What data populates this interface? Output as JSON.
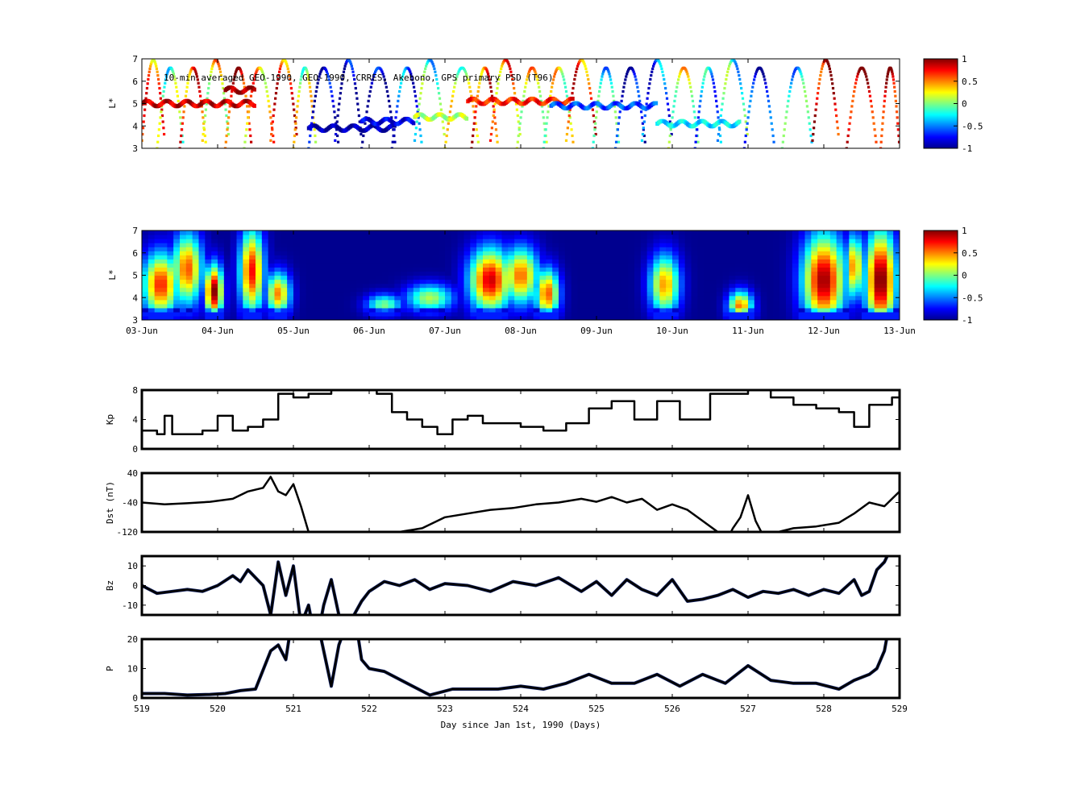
{
  "colors": {
    "jet": [
      "#00008f",
      "#0000ff",
      "#0080ff",
      "#00ffff",
      "#80ff80",
      "#ffff00",
      "#ff8000",
      "#ff0000",
      "#800000"
    ],
    "line": "#000000",
    "highlight": "#102060",
    "missing": "#00008f"
  },
  "chart_data": [
    {
      "id": "psd-obs",
      "type": "scatter",
      "title": "10-min averaged GEO-1990, GEO-1990, CRRES, Akebono, GPS  primary PSD (T96)",
      "ylabel": "L*",
      "ylim": [
        3,
        7
      ],
      "yticks": [
        "3",
        "4",
        "5",
        "6",
        "7"
      ],
      "xlim": [
        519,
        529
      ],
      "colorbar": {
        "range": [
          -1,
          1
        ],
        "ticks": [
          "1",
          "0.5",
          "0",
          "-0.5",
          "-1"
        ]
      },
      "passes": [
        {
          "t0": 519.0,
          "t1": 519.3,
          "v": 0.5
        },
        {
          "t0": 519.2,
          "t1": 519.55,
          "v": -0.1
        },
        {
          "t0": 519.5,
          "t1": 519.85,
          "v": 0.6
        },
        {
          "t0": 519.8,
          "t1": 520.15,
          "v": 0.3
        },
        {
          "t0": 520.1,
          "t1": 520.45,
          "v": 0.8
        },
        {
          "t0": 520.35,
          "t1": 520.75,
          "v": 0.4
        },
        {
          "t0": 520.7,
          "t1": 521.05,
          "v": 0.6
        },
        {
          "t0": 521.0,
          "t1": 521.3,
          "v": 0.1
        },
        {
          "t0": 521.2,
          "t1": 521.6,
          "v": -0.95
        },
        {
          "t0": 521.55,
          "t1": 521.9,
          "v": -0.9
        },
        {
          "t0": 521.9,
          "t1": 522.35,
          "v": -0.9
        },
        {
          "t0": 522.3,
          "t1": 522.7,
          "v": -0.6
        },
        {
          "t0": 522.6,
          "t1": 523.0,
          "v": -0.2
        },
        {
          "t0": 523.0,
          "t1": 523.45,
          "v": 0.1
        },
        {
          "t0": 523.35,
          "t1": 523.7,
          "v": 0.6
        },
        {
          "t0": 523.6,
          "t1": 524.0,
          "v": 0.5
        },
        {
          "t0": 523.95,
          "t1": 524.35,
          "v": 0.3
        },
        {
          "t0": 524.3,
          "t1": 524.7,
          "v": 0.2
        },
        {
          "t0": 524.6,
          "t1": 525.0,
          "v": 0.6
        },
        {
          "t0": 524.95,
          "t1": 525.3,
          "v": -0.3
        },
        {
          "t0": 525.25,
          "t1": 525.65,
          "v": -0.9
        },
        {
          "t0": 525.6,
          "t1": 526.0,
          "v": -0.6
        },
        {
          "t0": 525.95,
          "t1": 526.35,
          "v": 0.2
        },
        {
          "t0": 526.3,
          "t1": 526.65,
          "v": -0.4
        },
        {
          "t0": 526.6,
          "t1": 527.0,
          "v": -0.2
        },
        {
          "t0": 526.95,
          "t1": 527.35,
          "v": -0.8
        },
        {
          "t0": 527.45,
          "t1": 527.85,
          "v": -0.3
        },
        {
          "t0": 527.85,
          "t1": 528.2,
          "v": 0.85
        },
        {
          "t0": 528.3,
          "t1": 528.7,
          "v": 0.9
        },
        {
          "t0": 528.75,
          "t1": 529.0,
          "v": 0.9
        }
      ],
      "bands": [
        {
          "t0": 519.0,
          "t1": 520.5,
          "L": 5.0,
          "v": 0.85
        },
        {
          "t0": 520.1,
          "t1": 520.5,
          "L": 5.6,
          "v": 0.95
        },
        {
          "t0": 521.2,
          "t1": 522.35,
          "L": 3.9,
          "v": -0.95
        },
        {
          "t0": 521.9,
          "t1": 522.6,
          "L": 4.2,
          "v": -0.8
        },
        {
          "t0": 522.6,
          "t1": 523.3,
          "L": 4.4,
          "v": 0.1
        },
        {
          "t0": 523.3,
          "t1": 524.7,
          "L": 5.1,
          "v": 0.7
        },
        {
          "t0": 524.4,
          "t1": 525.8,
          "L": 4.9,
          "v": -0.6
        },
        {
          "t0": 525.8,
          "t1": 526.9,
          "L": 4.1,
          "v": -0.3
        }
      ]
    },
    {
      "id": "psd-model",
      "type": "heatmap",
      "ylabel": "L*",
      "ylim": [
        3,
        7
      ],
      "yticks": [
        "3",
        "4",
        "5",
        "6",
        "7"
      ],
      "xlim": [
        519,
        529
      ],
      "xticks": [
        "03-Jun",
        "04-Jun",
        "05-Jun",
        "06-Jun",
        "07-Jun",
        "08-Jun",
        "09-Jun",
        "10-Jun",
        "11-Jun",
        "12-Jun",
        "13-Jun"
      ],
      "colorbar": {
        "range": [
          -1,
          1
        ],
        "ticks": [
          "1",
          "0.5",
          "0",
          "-0.5",
          "-1"
        ]
      },
      "blobs": [
        {
          "t": 519.25,
          "w": 0.3,
          "L": 4.6,
          "h": 1.8,
          "v": 0.7
        },
        {
          "t": 519.6,
          "w": 0.25,
          "L": 5.3,
          "h": 2.0,
          "v": 0.6
        },
        {
          "t": 519.95,
          "w": 0.15,
          "L": 4.3,
          "h": 1.5,
          "v": 1.0
        },
        {
          "t": 520.45,
          "w": 0.2,
          "L": 5.2,
          "h": 2.4,
          "v": 0.75
        },
        {
          "t": 520.8,
          "w": 0.2,
          "L": 4.2,
          "h": 1.2,
          "v": 0.5
        },
        {
          "t": 522.2,
          "w": 0.3,
          "L": 3.7,
          "h": 0.6,
          "v": 0.0
        },
        {
          "t": 522.8,
          "w": 0.4,
          "L": 4.0,
          "h": 0.8,
          "v": 0.1
        },
        {
          "t": 523.6,
          "w": 0.35,
          "L": 4.8,
          "h": 1.8,
          "v": 0.85
        },
        {
          "t": 524.0,
          "w": 0.3,
          "L": 5.0,
          "h": 1.6,
          "v": 0.55
        },
        {
          "t": 524.35,
          "w": 0.2,
          "L": 4.2,
          "h": 1.4,
          "v": 0.6
        },
        {
          "t": 525.9,
          "w": 0.25,
          "L": 4.6,
          "h": 1.7,
          "v": 0.45
        },
        {
          "t": 526.9,
          "w": 0.2,
          "L": 3.6,
          "h": 0.9,
          "v": 0.55
        },
        {
          "t": 528.0,
          "w": 0.35,
          "L": 4.8,
          "h": 2.6,
          "v": 0.95
        },
        {
          "t": 528.75,
          "w": 0.25,
          "L": 4.8,
          "h": 2.8,
          "v": 1.05
        },
        {
          "t": 528.4,
          "w": 0.15,
          "L": 5.4,
          "h": 1.8,
          "v": 0.5
        }
      ]
    },
    {
      "id": "kp",
      "type": "line",
      "ylabel": "Kp",
      "ylim": [
        0,
        8
      ],
      "yticks": [
        "0",
        "4",
        "8"
      ],
      "xlim": [
        519,
        529
      ],
      "x": [
        519.0,
        519.2,
        519.3,
        519.4,
        519.5,
        519.8,
        520.0,
        520.2,
        520.4,
        520.6,
        520.8,
        521.0,
        521.2,
        521.5,
        521.9,
        522.1,
        522.3,
        522.5,
        522.7,
        522.9,
        523.1,
        523.3,
        523.5,
        523.8,
        524.0,
        524.3,
        524.6,
        524.9,
        525.2,
        525.5,
        525.8,
        526.1,
        526.3,
        526.5,
        526.8,
        527.0,
        527.3,
        527.6,
        527.9,
        528.2,
        528.4,
        528.6,
        528.9,
        529.0
      ],
      "values": [
        2.5,
        2.0,
        4.5,
        2.0,
        2.0,
        2.5,
        4.5,
        2.5,
        3.0,
        4.0,
        7.5,
        7.0,
        7.5,
        8.0,
        8.0,
        7.5,
        5.0,
        4.0,
        3.0,
        2.0,
        4.0,
        4.5,
        3.5,
        3.5,
        3.0,
        2.5,
        3.5,
        5.5,
        6.5,
        4.0,
        6.5,
        4.0,
        4.0,
        7.5,
        7.5,
        8.0,
        7.0,
        6.0,
        5.5,
        5.0,
        3.0,
        6.0,
        7.0,
        6.5
      ]
    },
    {
      "id": "dst",
      "type": "line",
      "ylabel": "Dst (nT)",
      "ylim": [
        -120,
        40
      ],
      "yticks": [
        "-120",
        "-40",
        "40"
      ],
      "xlim": [
        519,
        529
      ],
      "x": [
        519.0,
        519.3,
        519.6,
        519.9,
        520.2,
        520.4,
        520.6,
        520.7,
        520.8,
        520.9,
        521.0,
        521.1,
        521.2,
        521.3,
        521.5,
        521.8,
        522.1,
        522.4,
        522.7,
        523.0,
        523.3,
        523.6,
        523.9,
        524.2,
        524.5,
        524.8,
        525.0,
        525.2,
        525.4,
        525.6,
        525.8,
        526.0,
        526.2,
        526.4,
        526.6,
        526.7,
        526.8,
        526.9,
        527.0,
        527.1,
        527.2,
        527.4,
        527.6,
        527.9,
        528.2,
        528.4,
        528.6,
        528.8,
        529.0
      ],
      "values": [
        -40,
        -45,
        -42,
        -38,
        -30,
        -10,
        0,
        30,
        -10,
        -20,
        10,
        -50,
        -120,
        -150,
        -170,
        -150,
        -140,
        -120,
        -110,
        -80,
        -70,
        -60,
        -55,
        -45,
        -40,
        -30,
        -38,
        -25,
        -40,
        -30,
        -60,
        -45,
        -60,
        -90,
        -120,
        -150,
        -110,
        -80,
        -20,
        -90,
        -130,
        -120,
        -110,
        -105,
        -95,
        -70,
        -40,
        -50,
        -10
      ]
    },
    {
      "id": "bz",
      "type": "line",
      "ylabel": "Bz",
      "ylim": [
        -15,
        15
      ],
      "yticks": [
        "-10",
        "0",
        "10"
      ],
      "xlim": [
        519,
        529
      ],
      "x": [
        519.0,
        519.1,
        519.2,
        519.4,
        519.6,
        519.8,
        520.0,
        520.2,
        520.3,
        520.4,
        520.5,
        520.6,
        520.7,
        520.8,
        520.9,
        521.0,
        521.1,
        521.2,
        521.3,
        521.4,
        521.5,
        521.6,
        521.7,
        521.8,
        521.9,
        522.0,
        522.2,
        522.4,
        522.6,
        522.8,
        523.0,
        523.3,
        523.6,
        523.9,
        524.2,
        524.5,
        524.8,
        525.0,
        525.2,
        525.4,
        525.6,
        525.8,
        526.0,
        526.2,
        526.4,
        526.6,
        526.8,
        527.0,
        527.2,
        527.4,
        527.6,
        527.8,
        528.0,
        528.2,
        528.4,
        528.5,
        528.6,
        528.7,
        528.8,
        528.9,
        529.0
      ],
      "values": [
        0,
        -2,
        -4,
        -3,
        -2,
        -3,
        0,
        5,
        2,
        8,
        4,
        0,
        -15,
        12,
        -5,
        10,
        -20,
        -10,
        -30,
        -10,
        3,
        -15,
        -40,
        -15,
        -8,
        -3,
        2,
        0,
        3,
        -2,
        1,
        0,
        -3,
        2,
        0,
        4,
        -3,
        2,
        -5,
        3,
        -2,
        -5,
        3,
        -8,
        -7,
        -5,
        -2,
        -6,
        -3,
        -4,
        -2,
        -5,
        -2,
        -4,
        3,
        -5,
        -3,
        8,
        12,
        20,
        25
      ]
    },
    {
      "id": "p",
      "type": "line",
      "ylabel": "P",
      "ylim": [
        0,
        20
      ],
      "yticks": [
        "0",
        "10",
        "20"
      ],
      "xlim": [
        519,
        529
      ],
      "xticks": [
        "519",
        "520",
        "521",
        "522",
        "523",
        "524",
        "525",
        "526",
        "527",
        "528",
        "529"
      ],
      "xlabel": "Day since Jan 1st, 1990 (Days)",
      "x": [
        519.0,
        519.3,
        519.6,
        519.9,
        520.1,
        520.3,
        520.5,
        520.7,
        520.8,
        520.9,
        521.0,
        521.1,
        521.3,
        521.5,
        521.6,
        521.7,
        521.8,
        521.9,
        522.0,
        522.2,
        522.5,
        522.8,
        523.1,
        523.4,
        523.7,
        524.0,
        524.3,
        524.6,
        524.9,
        525.2,
        525.5,
        525.8,
        526.1,
        526.4,
        526.7,
        527.0,
        527.3,
        527.6,
        527.9,
        528.2,
        528.4,
        528.6,
        528.7,
        528.8,
        528.9,
        529.0
      ],
      "values": [
        1.5,
        1.5,
        1.0,
        1.2,
        1.5,
        2.5,
        3.0,
        16,
        18,
        13,
        30,
        22,
        28,
        4,
        18,
        25,
        30,
        13,
        10,
        9,
        5,
        1,
        3,
        3,
        3,
        4,
        3,
        5,
        8,
        5,
        5,
        8,
        4,
        8,
        5,
        11,
        6,
        5,
        5,
        3,
        6,
        8,
        10,
        16,
        30,
        25
      ]
    }
  ]
}
